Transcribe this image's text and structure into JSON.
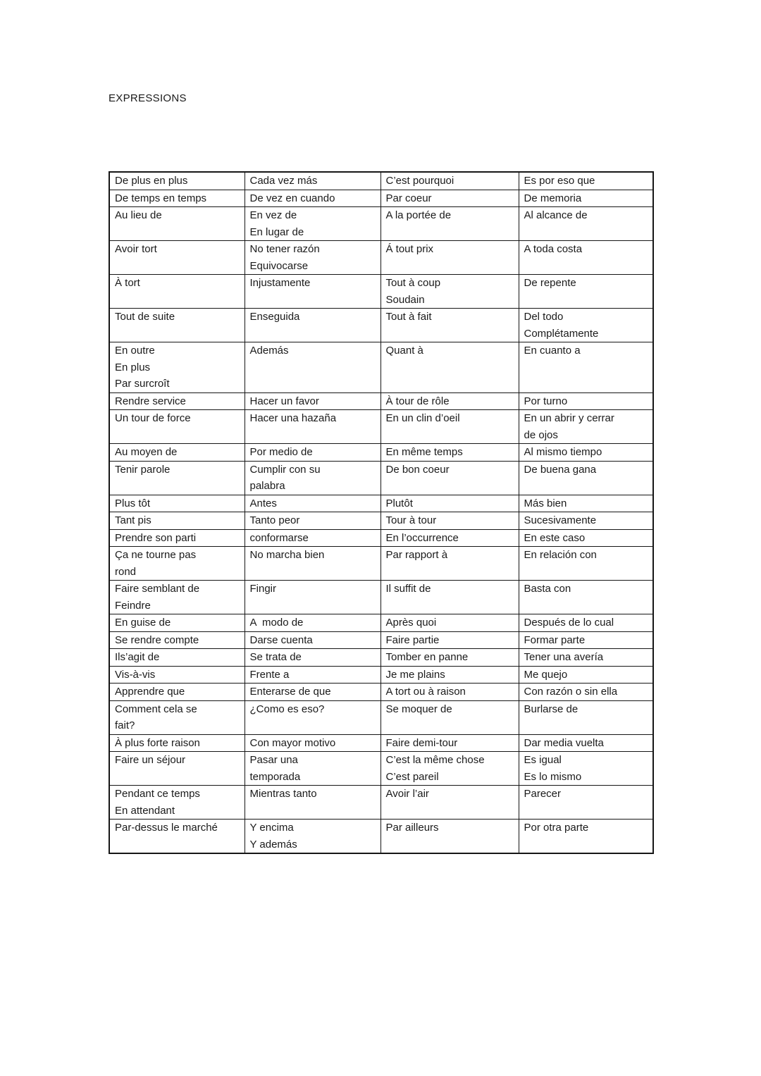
{
  "page": {
    "title": "EXPRESSIONS"
  },
  "table": {
    "rows": [
      [
        [
          "De plus en plus"
        ],
        [
          "Cada vez más"
        ],
        [
          "C’est pourquoi"
        ],
        [
          "Es por eso que"
        ]
      ],
      [
        [
          "De temps en temps"
        ],
        [
          "De vez en cuando"
        ],
        [
          "Par coeur"
        ],
        [
          "De memoria"
        ]
      ],
      [
        [
          "Au lieu de"
        ],
        [
          "En vez de",
          "En lugar de"
        ],
        [
          "A la portée de"
        ],
        [
          "Al alcance de"
        ]
      ],
      [
        [
          "Avoir tort"
        ],
        [
          "No tener razón",
          "Equivocarse"
        ],
        [
          "Á tout prix"
        ],
        [
          "A toda costa"
        ]
      ],
      [
        [
          "À tort"
        ],
        [
          "Injustamente"
        ],
        [
          "Tout à coup",
          "Soudain"
        ],
        [
          "De repente"
        ]
      ],
      [
        [
          "Tout de suite"
        ],
        [
          "Enseguida"
        ],
        [
          "Tout à fait"
        ],
        [
          "Del todo",
          "Complétamente"
        ]
      ],
      [
        [
          "En outre",
          "En plus",
          "Par surcroît"
        ],
        [
          "Además"
        ],
        [
          "Quant à"
        ],
        [
          "En cuanto a"
        ]
      ],
      [
        [
          "Rendre service"
        ],
        [
          "Hacer un favor"
        ],
        [
          "À tour de rôle"
        ],
        [
          "Por turno"
        ]
      ],
      [
        [
          "Un tour de force"
        ],
        [
          "Hacer una hazaña"
        ],
        [
          "En un clin d’oeil"
        ],
        [
          "En un abrir y cerrar",
          "de ojos"
        ]
      ],
      [
        [
          "Au moyen de"
        ],
        [
          "Por medio de"
        ],
        [
          "En même temps"
        ],
        [
          "Al mismo tiempo"
        ]
      ],
      [
        [
          "Tenir parole"
        ],
        [
          "Cumplir con su",
          "palabra"
        ],
        [
          "De bon coeur"
        ],
        [
          "De buena gana"
        ]
      ],
      [
        [
          "Plus tôt"
        ],
        [
          "Antes"
        ],
        [
          "Plutôt"
        ],
        [
          "Más bien"
        ]
      ],
      [
        [
          "Tant pis"
        ],
        [
          "Tanto peor"
        ],
        [
          "Tour à tour"
        ],
        [
          "Sucesivamente"
        ]
      ],
      [
        [
          "Prendre son parti"
        ],
        [
          "conformarse"
        ],
        [
          "En l’occurrence"
        ],
        [
          "En este caso"
        ]
      ],
      [
        [
          "Ça ne tourne pas",
          "rond"
        ],
        [
          "No marcha bien"
        ],
        [
          "Par rapport à"
        ],
        [
          "En relación con"
        ]
      ],
      [
        [
          "Faire semblant de",
          "Feindre"
        ],
        [
          "Fingir"
        ],
        [
          "Il suffit de"
        ],
        [
          "Basta con"
        ]
      ],
      [
        [
          "En guise de"
        ],
        [
          "A  modo de"
        ],
        [
          "Après quoi"
        ],
        [
          "Después de lo cual"
        ]
      ],
      [
        [
          "Se rendre compte"
        ],
        [
          "Darse cuenta"
        ],
        [
          "Faire partie"
        ],
        [
          "Formar parte"
        ]
      ],
      [
        [
          "Ils’agit de"
        ],
        [
          "Se trata de"
        ],
        [
          "Tomber en panne"
        ],
        [
          "Tener una avería"
        ]
      ],
      [
        [
          "Vis-à-vis"
        ],
        [
          "Frente a"
        ],
        [
          "Je me plains"
        ],
        [
          "Me quejo"
        ]
      ],
      [
        [
          "Apprendre que"
        ],
        [
          "Enterarse de que"
        ],
        [
          "A tort ou à raison"
        ],
        [
          "Con razón o sin ella"
        ]
      ],
      [
        [
          "Comment cela se",
          "fait?"
        ],
        [
          "¿Como es eso?"
        ],
        [
          "Se moquer de"
        ],
        [
          "Burlarse de"
        ]
      ],
      [
        [
          "À plus forte raison"
        ],
        [
          "Con mayor motivo"
        ],
        [
          "Faire demi-tour"
        ],
        [
          "Dar media vuelta"
        ]
      ],
      [
        [
          "Faire un séjour"
        ],
        [
          "Pasar una",
          "temporada"
        ],
        [
          "C’est la même chose",
          "C’est pareil"
        ],
        [
          "Es igual",
          "Es lo mismo"
        ]
      ],
      [
        [
          "Pendant ce temps",
          "En attendant"
        ],
        [
          "Mientras tanto"
        ],
        [
          "Avoir l’air"
        ],
        [
          "Parecer"
        ]
      ],
      [
        [
          "Par-dessus le marché"
        ],
        [
          "Y encima",
          "Y además"
        ],
        [
          "Par ailleurs"
        ],
        [
          "Por otra parte"
        ]
      ]
    ]
  }
}
